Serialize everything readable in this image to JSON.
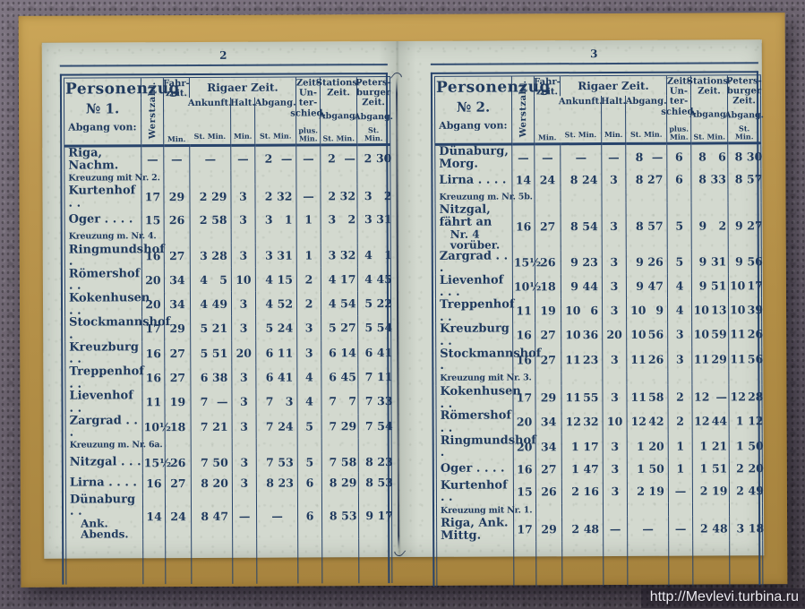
{
  "colors": {
    "ink": "#27436b",
    "ink-strong": "#203a5e",
    "paper": "#d3d9cf",
    "gold": "#b5914a",
    "wall": "#6b6370"
  },
  "watermark": "http://Mevlevi.turbina.ru",
  "header": {
    "title": "Personenzug",
    "abgang_von": "Abgang von:",
    "werstzahl": "Werstzahl.",
    "fahrzeit": "Fahr-\nzeit.",
    "fahrzeit_unit": "Min.",
    "rigaer_zeit": "Rigaer Zeit.",
    "ankunft": "Ankunft.",
    "ankunft_unit": "St. Min.",
    "halt": "Halt.",
    "halt_unit": "Min.",
    "abgang": "Abgang.",
    "abgang_unit": "St. Min.",
    "zeitunterschied": "Zeit-\nUn-\nter-\nschied.",
    "zeitunterschied_unit": "plus.\nMin.",
    "stationszeit": "Stations-\nZeit.",
    "stationszeit_mid": "Abgang.",
    "stationszeit_unit": "St. Min.",
    "petersburger": "Peters-\nburger\nZeit.",
    "petersburger_mid": "Abgang.",
    "petersburger_unit": "St. Min."
  },
  "pages": [
    {
      "page_number": "2",
      "train_no": "№ 1.",
      "rows": [
        {
          "type": "data",
          "name": "Riga, Nachm.",
          "werst": "—",
          "fahr": "—",
          "ank": "—",
          "halt": "—",
          "abg": "2 —",
          "diff": "—",
          "stat": "2 —",
          "pet": "2 30"
        },
        {
          "type": "note",
          "name": "Kreuzung mit Nr. 2."
        },
        {
          "type": "data",
          "name": "Kurtenhof . .",
          "werst": "17",
          "fahr": "29",
          "ank": "2 29",
          "halt": "3",
          "abg": "2 32",
          "diff": "—",
          "stat": "2 32",
          "pet": "3 2"
        },
        {
          "type": "data",
          "name": "Oger . . . .",
          "werst": "15",
          "fahr": "26",
          "ank": "2 58",
          "halt": "3",
          "abg": "3 1",
          "diff": "1",
          "stat": "3 2",
          "pet": "3 31"
        },
        {
          "type": "note",
          "name": "Kreuzung m. Nr. 4."
        },
        {
          "type": "data",
          "name": "Ringmundshof .",
          "werst": "16",
          "fahr": "27",
          "ank": "3 28",
          "halt": "3",
          "abg": "3 31",
          "diff": "1",
          "stat": "3 32",
          "pet": "4 1"
        },
        {
          "type": "data",
          "name": "Römershof . .",
          "werst": "20",
          "fahr": "34",
          "ank": "4 5",
          "halt": "10",
          "abg": "4 15",
          "diff": "2",
          "stat": "4 17",
          "pet": "4 45"
        },
        {
          "type": "data",
          "name": "Kokenhusen . .",
          "werst": "20",
          "fahr": "34",
          "ank": "4 49",
          "halt": "3",
          "abg": "4 52",
          "diff": "2",
          "stat": "4 54",
          "pet": "5 22"
        },
        {
          "type": "data",
          "name": "Stockmannshof .",
          "werst": "17",
          "fahr": "29",
          "ank": "5 21",
          "halt": "3",
          "abg": "5 24",
          "diff": "3",
          "stat": "5 27",
          "pet": "5 54"
        },
        {
          "type": "data",
          "name": "Kreuzburg . .",
          "werst": "16",
          "fahr": "27",
          "ank": "5 51",
          "halt": "20",
          "abg": "6 11",
          "diff": "3",
          "stat": "6 14",
          "pet": "6 41"
        },
        {
          "type": "data",
          "name": "Treppenhof . .",
          "werst": "16",
          "fahr": "27",
          "ank": "6 38",
          "halt": "3",
          "abg": "6 41",
          "diff": "4",
          "stat": "6 45",
          "pet": "7 11"
        },
        {
          "type": "data",
          "name": "Lievenhof . .",
          "werst": "11",
          "fahr": "19",
          "ank": "7 —",
          "halt": "3",
          "abg": "7 3",
          "diff": "4",
          "stat": "7 7",
          "pet": "7 33"
        },
        {
          "type": "data",
          "name": "Zargrad . . .",
          "werst": "10½",
          "fahr": "18",
          "ank": "7 21",
          "halt": "3",
          "abg": "7 24",
          "diff": "5",
          "stat": "7 29",
          "pet": "7 54"
        },
        {
          "type": "note",
          "name": "Kreuzung m. Nr. 6a."
        },
        {
          "type": "data",
          "name": "Nitzgal . . .",
          "werst": "15½",
          "fahr": "26",
          "ank": "7 50",
          "halt": "3",
          "abg": "7 53",
          "diff": "5",
          "stat": "7 58",
          "pet": "8 23"
        },
        {
          "type": "data",
          "name": "Lirna . . . .",
          "werst": "16",
          "fahr": "27",
          "ank": "8 20",
          "halt": "3",
          "abg": "8 23",
          "diff": "6",
          "stat": "8 29",
          "pet": "8 53"
        },
        {
          "type": "data",
          "name": "Dünaburg . .",
          "name2": "Ank. Abends.",
          "werst": "14",
          "fahr": "24",
          "ank": "8 47",
          "halt": "—",
          "abg": "—",
          "diff": "6",
          "stat": "8 53",
          "pet": "9 17"
        }
      ]
    },
    {
      "page_number": "3",
      "train_no": "№ 2.",
      "rows": [
        {
          "type": "data",
          "name": "Dünaburg, Morg.",
          "werst": "—",
          "fahr": "—",
          "ank": "—",
          "halt": "—",
          "abg": "8 —",
          "diff": "6",
          "stat": "8 6",
          "pet": "8 30"
        },
        {
          "type": "data",
          "name": "Lirna . . . .",
          "werst": "14",
          "fahr": "24",
          "ank": "8 24",
          "halt": "3",
          "abg": "8 27",
          "diff": "6",
          "stat": "8 33",
          "pet": "8 57"
        },
        {
          "type": "note",
          "name": "Kreuzung m. Nr. 5b."
        },
        {
          "type": "data",
          "name": "Nitzgal, fährt an",
          "name2": "Nr. 4 vorüber.",
          "werst": "16",
          "fahr": "27",
          "ank": "8 54",
          "halt": "3",
          "abg": "8 57",
          "diff": "5",
          "stat": "9 2",
          "pet": "9 27"
        },
        {
          "type": "data",
          "name": "Zargrad . . .",
          "werst": "15½",
          "fahr": "26",
          "ank": "9 23",
          "halt": "3",
          "abg": "9 26",
          "diff": "5",
          "stat": "9 31",
          "pet": "9 56"
        },
        {
          "type": "data",
          "name": "Lievenhof . . .",
          "werst": "10½",
          "fahr": "18",
          "ank": "9 44",
          "halt": "3",
          "abg": "9 47",
          "diff": "4",
          "stat": "9 51",
          "pet": "10 17"
        },
        {
          "type": "data",
          "name": "Treppenhof . .",
          "werst": "11",
          "fahr": "19",
          "ank": "10 6",
          "halt": "3",
          "abg": "10 9",
          "diff": "4",
          "stat": "10 13",
          "pet": "10 39"
        },
        {
          "type": "data",
          "name": "Kreuzburg . .",
          "werst": "16",
          "fahr": "27",
          "ank": "10 36",
          "halt": "20",
          "abg": "10 56",
          "diff": "3",
          "stat": "10 59",
          "pet": "11 26"
        },
        {
          "type": "data",
          "name": "Stockmannshof .",
          "werst": "16",
          "fahr": "27",
          "ank": "11 23",
          "halt": "3",
          "abg": "11 26",
          "diff": "3",
          "stat": "11 29",
          "pet": "11 56"
        },
        {
          "type": "note",
          "name": "Kreuzung mit Nr. 3."
        },
        {
          "type": "data",
          "name": "Kokenhusen . .",
          "werst": "17",
          "fahr": "29",
          "ank": "11 55",
          "halt": "3",
          "abg": "11 58",
          "diff": "2",
          "stat": "12 —",
          "pet": "12 28"
        },
        {
          "type": "data",
          "name": "Römershof . .",
          "werst": "20",
          "fahr": "34",
          "ank": "12 32",
          "halt": "10",
          "abg": "12 42",
          "diff": "2",
          "stat": "12 44",
          "pet": "1 12"
        },
        {
          "type": "data",
          "name": "Ringmundshof .",
          "werst": "20",
          "fahr": "34",
          "ank": "1 17",
          "halt": "3",
          "abg": "1 20",
          "diff": "1",
          "stat": "1 21",
          "pet": "1 50"
        },
        {
          "type": "data",
          "name": "Oger . . . .",
          "werst": "16",
          "fahr": "27",
          "ank": "1 47",
          "halt": "3",
          "abg": "1 50",
          "diff": "1",
          "stat": "1 51",
          "pet": "2 20"
        },
        {
          "type": "data",
          "name": "Kurtenhof . .",
          "werst": "15",
          "fahr": "26",
          "ank": "2 16",
          "halt": "3",
          "abg": "2 19",
          "diff": "—",
          "stat": "2 19",
          "pet": "2 49"
        },
        {
          "type": "note",
          "name": "Kreuzung mit Nr. 1."
        },
        {
          "type": "data",
          "name": "Riga, Ank. Mittg.",
          "werst": "17",
          "fahr": "29",
          "ank": "2 48",
          "halt": "—",
          "abg": "—",
          "diff": "—",
          "stat": "2 48",
          "pet": "3 18"
        }
      ]
    }
  ]
}
